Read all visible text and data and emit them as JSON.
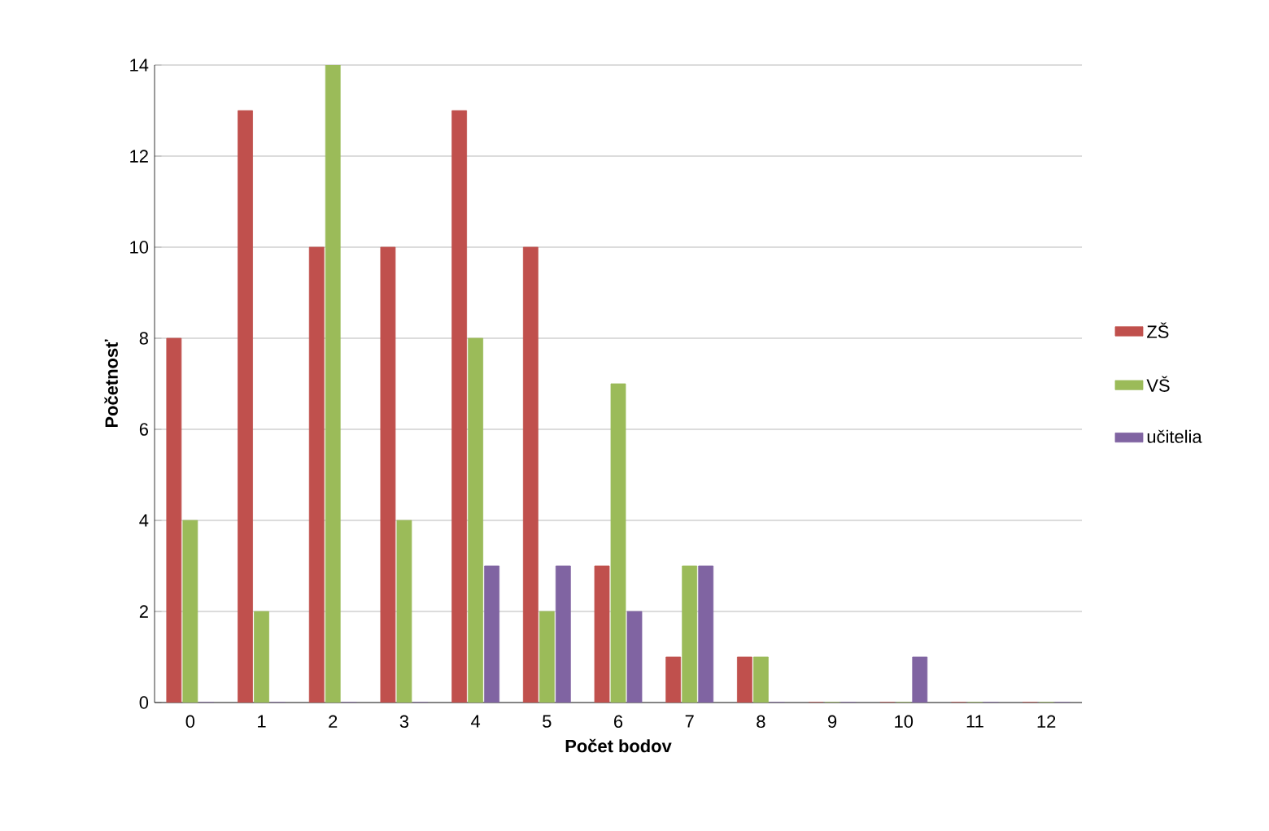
{
  "chart_data": {
    "type": "bar",
    "xlabel": "Počet bodov",
    "ylabel": "Početnosť",
    "categories": [
      "0",
      "1",
      "2",
      "3",
      "4",
      "5",
      "6",
      "7",
      "8",
      "9",
      "10",
      "11",
      "12"
    ],
    "series": [
      {
        "name": "ZŠ",
        "color": "#c0504d",
        "values": [
          8,
          13,
          10,
          10,
          13,
          10,
          3,
          1,
          1,
          0,
          0,
          0,
          0
        ]
      },
      {
        "name": "VŠ",
        "color": "#9bbb59",
        "values": [
          4,
          2,
          14,
          4,
          8,
          2,
          7,
          3,
          1,
          0,
          0,
          0,
          0
        ]
      },
      {
        "name": "učitelia",
        "color": "#8064a2",
        "values": [
          0,
          0,
          0,
          0,
          3,
          3,
          2,
          3,
          0,
          0,
          1,
          0,
          0
        ]
      }
    ],
    "ylim": [
      0,
      14
    ],
    "yticks": [
      0,
      2,
      4,
      6,
      8,
      10,
      12,
      14
    ],
    "grid": "y",
    "legend": "right"
  }
}
